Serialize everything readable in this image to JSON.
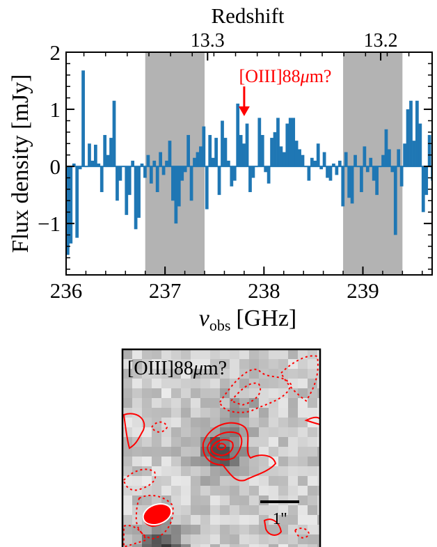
{
  "chart_data": [
    {
      "type": "bar",
      "title": "",
      "xlabel": "νobs [GHz]",
      "xlabel_main": "ν",
      "xlabel_sub": "obs",
      "xlabel_unit": "[GHz]",
      "ylabel": "Flux density [mJy]",
      "top_axis_label": "Redshift",
      "xlim": [
        236.0,
        239.7
      ],
      "ylim": [
        -1.9,
        2.0
      ],
      "x_ticks": [
        236,
        237,
        238,
        239
      ],
      "x_tick_labels": [
        "236",
        "237",
        "238",
        "239"
      ],
      "y_ticks": [
        -1,
        0,
        1,
        2
      ],
      "y_tick_labels": [
        "−1",
        "0",
        "1",
        "2"
      ],
      "top_ticks": [
        {
          "freq": 237.43,
          "label": "13.3"
        },
        {
          "freq": 239.18,
          "label": "13.2"
        }
      ],
      "shaded_ranges": [
        [
          236.8,
          237.4
        ],
        [
          238.8,
          239.4
        ]
      ],
      "shade_color": "#b3b3b3",
      "bar_color": "#1f77b4",
      "bin_start": 236.0,
      "bin_width": 0.03125,
      "values": [
        -1.55,
        -1.35,
        0.05,
        -1.25,
        -0.05,
        1.68,
        0.0,
        0.4,
        0.1,
        0.38,
        0.05,
        -0.45,
        0.55,
        0.2,
        0.5,
        1.15,
        -0.6,
        -0.25,
        0.0,
        -0.85,
        -0.5,
        0.1,
        -1.1,
        -0.9,
        0.05,
        -0.2,
        0.2,
        -0.3,
        0.1,
        -0.45,
        0.25,
        -0.15,
        0.1,
        0.45,
        -0.6,
        -1.0,
        -0.7,
        -0.25,
        -0.1,
        0.55,
        -0.6,
        0.15,
        0.25,
        0.35,
        0.7,
        -0.75,
        0.55,
        0.15,
        0.5,
        -0.5,
        0.8,
        0.5,
        0.1,
        -0.35,
        -0.25,
        1.1,
        0.55,
        0.4,
        0.75,
        -0.45,
        -0.2,
        0.0,
        0.85,
        0.55,
        -0.1,
        -0.3,
        0.5,
        0.6,
        0.85,
        0.35,
        0.25,
        0.75,
        0.85,
        0.85,
        0.45,
        0.3,
        0.2,
        0.0,
        -0.25,
        0.15,
        0.1,
        0.4,
        -0.05,
        0.25,
        -0.2,
        -0.25,
        0.05,
        -0.15,
        0.1,
        -0.7,
        0.25,
        -0.55,
        -0.65,
        0.2,
        0.0,
        -0.45,
        0.35,
        -0.1,
        0.15,
        -0.25,
        -0.5,
        0.0,
        0.2,
        0.65,
        0.3,
        -0.1,
        -1.2,
        0.3,
        -0.35,
        0.4,
        1.0,
        1.15,
        0.45,
        1.15,
        0.75,
        -0.8,
        -0.5,
        0.55,
        -0.25,
        1.05,
        -0.25,
        -0.45,
        0.85,
        -0.1,
        0.2,
        0.0,
        -1.0,
        0.1
      ],
      "annotation": {
        "text": "[OIII]88μm?",
        "text_prefix": "[OIII]88",
        "text_mu": "μ",
        "text_suffix": "m?",
        "arrow_tip": {
          "x": 237.8,
          "y": 0.88
        },
        "arrow_tail": {
          "x": 237.8,
          "y": 1.4
        },
        "color": "#ff0000"
      }
    },
    {
      "type": "image",
      "label": "[OIII]88μm?",
      "label_prefix": "[OIII]88",
      "label_mu": "μ",
      "label_suffix": "m?",
      "scale_bar_label": "1''",
      "contour_color": "#ff0000",
      "beam_color": "#ff0000"
    }
  ]
}
